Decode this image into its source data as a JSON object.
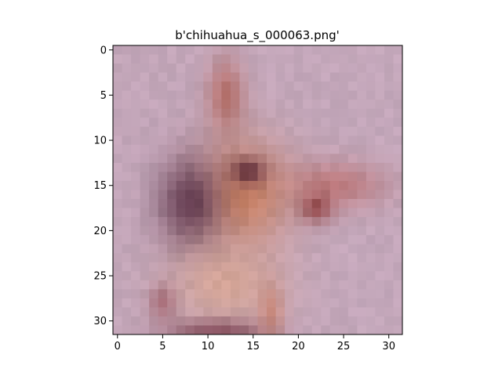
{
  "figure": {
    "title": "b'chihuahua_s_000063.png'"
  },
  "image": {
    "description_icon": "chihuahua-photo-icon",
    "grid_size": 32
  },
  "axes": {
    "x_ticks": [
      "0",
      "5",
      "10",
      "15",
      "20",
      "25",
      "30"
    ],
    "y_ticks": [
      "0",
      "5",
      "10",
      "15",
      "20",
      "25",
      "30"
    ],
    "xlim": [
      -0.5,
      31.5
    ],
    "ylim": [
      31.5,
      -0.5
    ]
  },
  "colors": {
    "background": "#c3a6b9",
    "dark_ear": "#5a3348",
    "fur_orange": "#c87a55",
    "fur_light": "#d9a590",
    "deep_red": "#8a3a3a"
  }
}
